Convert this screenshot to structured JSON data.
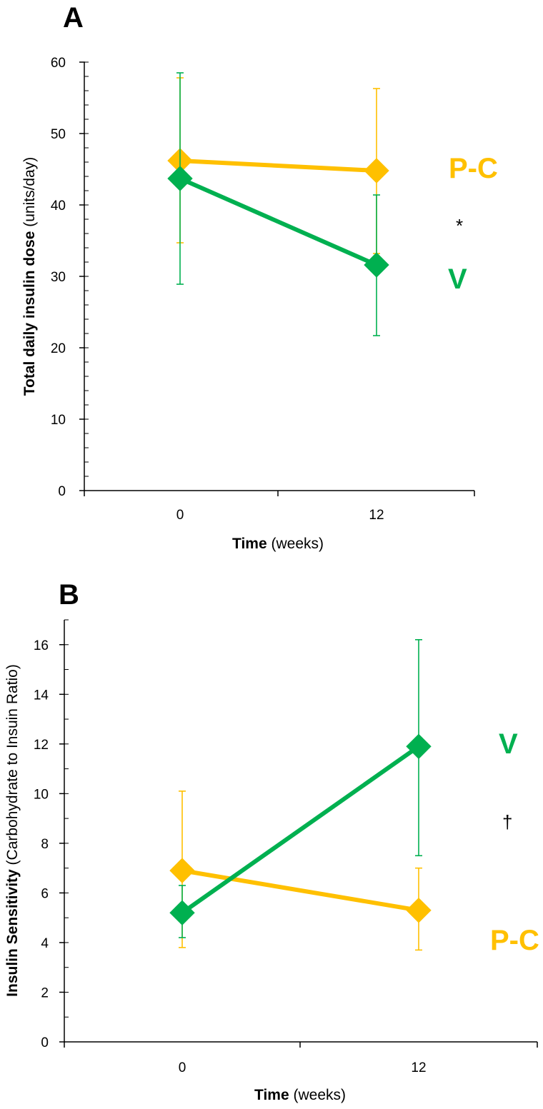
{
  "colors": {
    "pc": "#FFC000",
    "v": "#00B050",
    "axis": "#000000"
  },
  "chart_data": [
    {
      "panel_label": "A",
      "type": "line",
      "x_categories": [
        "0",
        "12"
      ],
      "xlabel_bold": "Time",
      "xlabel_rest": " (weeks)",
      "ylabel_bold": "Total daily insulin dose",
      "ylabel_rest": " (units/day)",
      "ylim": [
        0,
        60
      ],
      "yticks": [
        0,
        10,
        20,
        30,
        40,
        50,
        60
      ],
      "minor_step": 2,
      "series": [
        {
          "name": "P-C",
          "label": "P-C",
          "color_key": "pc",
          "values": [
            46.2,
            44.8
          ],
          "err_low": [
            34.7,
            33.2
          ],
          "err_high": [
            57.8,
            56.3
          ]
        },
        {
          "name": "V",
          "label": "V",
          "color_key": "v",
          "values": [
            43.7,
            31.6
          ],
          "err_low": [
            28.9,
            21.7
          ],
          "err_high": [
            58.5,
            41.4
          ]
        }
      ],
      "annotation": "*"
    },
    {
      "panel_label": "B",
      "type": "line",
      "x_categories": [
        "0",
        "12"
      ],
      "xlabel_bold": "Time",
      "xlabel_rest": " (weeks)",
      "ylabel_bold": "Insulin Sensitivity",
      "ylabel_rest": " (Carbohydrate to Insuin Ratio)",
      "ylim": [
        0,
        17
      ],
      "yticks": [
        0,
        2,
        4,
        6,
        8,
        10,
        12,
        14,
        16
      ],
      "minor_step": 1,
      "series": [
        {
          "name": "P-C",
          "label": "P-C",
          "color_key": "pc",
          "values": [
            6.9,
            5.3
          ],
          "err_low": [
            3.8,
            3.7
          ],
          "err_high": [
            10.1,
            7.0
          ]
        },
        {
          "name": "V",
          "label": "V",
          "color_key": "v",
          "values": [
            5.2,
            11.9
          ],
          "err_low": [
            4.2,
            7.5
          ],
          "err_high": [
            6.3,
            16.2
          ]
        }
      ],
      "annotation": "†"
    }
  ]
}
